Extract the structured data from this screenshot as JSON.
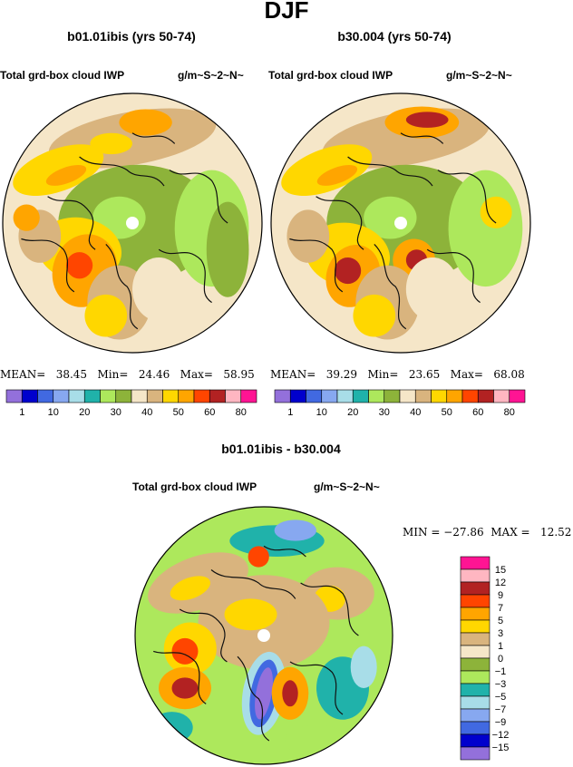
{
  "page": {
    "title": "DJF"
  },
  "panels": [
    {
      "id": "left",
      "title": "b01.01ibis (yrs 50-74)",
      "variable": "Total grd-box cloud IWP",
      "units": "g/m~S~2~N~",
      "stats_text": "MEAN=   38.45   Min=   24.46   Max=   58.95"
    },
    {
      "id": "right",
      "title": "b30.004 (yrs 50-74)",
      "variable": "Total grd-box cloud IWP",
      "units": "g/m~S~2~N~",
      "stats_text": "MEAN=   39.29   Min=   23.65   Max=   68.08"
    },
    {
      "id": "diff",
      "title": "b01.01ibis - b30.004",
      "variable": "Total grd-box cloud IWP",
      "units": "g/m~S~2~N~",
      "stats_text": "MIN = −27.86  MAX =   12.52"
    }
  ],
  "colors": {
    "abs_bins": [
      "#9370DB",
      "#0000CD",
      "#4169E1",
      "#87A8F0",
      "#A8DDE8",
      "#20B2AA",
      "#ADE85C",
      "#8DB33A",
      "#F5E6C8",
      "#D9B47E",
      "#FFD700",
      "#FFA500",
      "#FF4500",
      "#B22222",
      "#FFB6C1",
      "#FF1493"
    ],
    "diff_bins": [
      "#9370DB",
      "#0000CD",
      "#4169E1",
      "#87A8F0",
      "#A8DDE8",
      "#20B2AA",
      "#ADE85C",
      "#8DB33A",
      "#F5E6C8",
      "#D9B47E",
      "#FFD700",
      "#FFA500",
      "#FF4500",
      "#B22222",
      "#FFB6C1",
      "#FF1493"
    ]
  },
  "chart_data": [
    {
      "type": "heatmap",
      "title": "b01.01ibis (yrs 50-74)",
      "variable": "Total grd-box cloud IWP",
      "units": "g/m~S~2~N~",
      "projection": "north polar stereographic",
      "mean": 38.45,
      "min": 24.46,
      "max": 58.95,
      "colorbar_ticks": [
        "1",
        "10",
        "20",
        "30",
        "40",
        "50",
        "60",
        "80"
      ]
    },
    {
      "type": "heatmap",
      "title": "b30.004 (yrs 50-74)",
      "variable": "Total grd-box cloud IWP",
      "units": "g/m~S~2~N~",
      "projection": "north polar stereographic",
      "mean": 39.29,
      "min": 23.65,
      "max": 68.08,
      "colorbar_ticks": [
        "1",
        "10",
        "20",
        "30",
        "40",
        "50",
        "60",
        "80"
      ]
    },
    {
      "type": "heatmap",
      "title": "b01.01ibis - b30.004",
      "variable": "Total grd-box cloud IWP",
      "units": "g/m~S~2~N~",
      "projection": "north polar stereographic",
      "min": -27.86,
      "max": 12.52,
      "colorbar_ticks": [
        "15",
        "12",
        "9",
        "7",
        "5",
        "3",
        "1",
        "0",
        "−1",
        "−3",
        "−5",
        "−7",
        "−9",
        "−12",
        "−15"
      ]
    }
  ]
}
